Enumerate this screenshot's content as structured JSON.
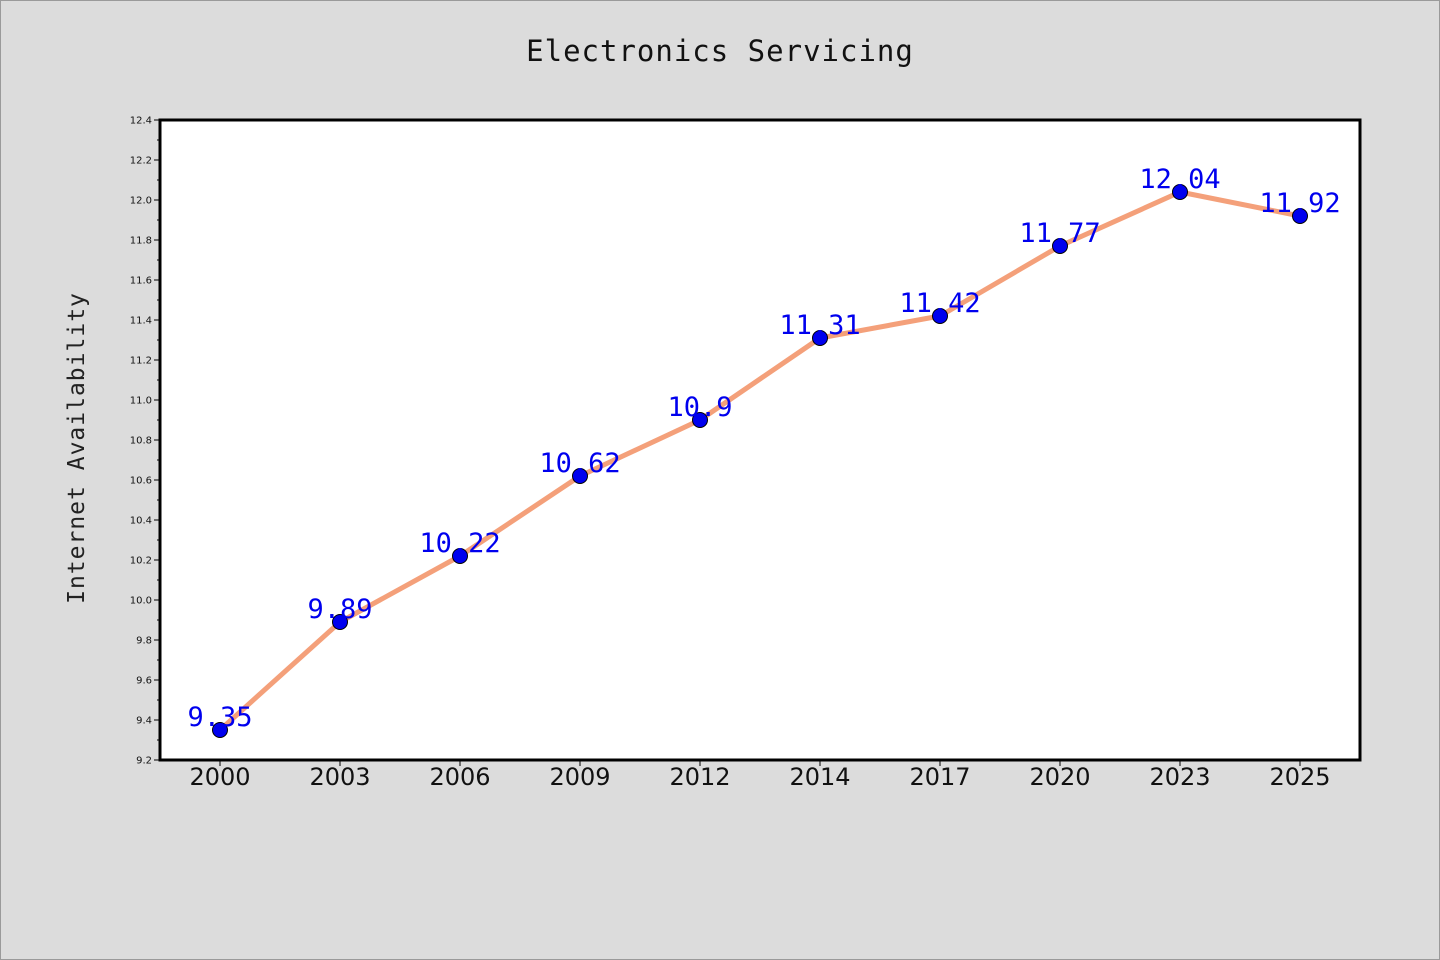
{
  "chart_data": {
    "type": "line",
    "title": "Electronics Servicing",
    "xlabel": "",
    "ylabel": "Internet Availability",
    "categories": [
      "2000",
      "2003",
      "2006",
      "2009",
      "2012",
      "2014",
      "2017",
      "2020",
      "2023",
      "2025"
    ],
    "series": [
      {
        "values": [
          9.35,
          9.89,
          10.22,
          10.62,
          10.9,
          11.31,
          11.42,
          11.77,
          12.04,
          11.92
        ],
        "labels": [
          "9.35",
          "9.89",
          "10.22",
          "10.62",
          "10.9",
          "11.31",
          "11.42",
          "11.77",
          "12.04",
          "11.92"
        ],
        "line_color": "#f4a07a",
        "marker_color": "#0000ee"
      }
    ],
    "ylim": [
      9.2,
      12.4
    ],
    "yticks": [
      "9.2",
      "9.4",
      "9.6",
      "9.8",
      "10.0",
      "10.2",
      "10.4",
      "10.6",
      "10.8",
      "11.0",
      "11.2",
      "11.4",
      "11.6",
      "11.8",
      "12.0",
      "12.2",
      "12.4"
    ],
    "grid": false,
    "legend": "none",
    "background_color": "#dcdcdc",
    "plot_background": "#ffffff"
  }
}
